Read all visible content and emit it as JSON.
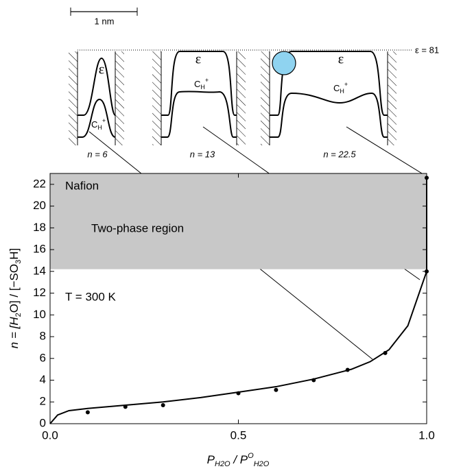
{
  "chart_data": {
    "type": "line",
    "xlim": [
      0,
      1
    ],
    "ylim": [
      0,
      23
    ],
    "xticks": [
      {
        "value": 0,
        "label": "0.0"
      },
      {
        "value": 0.5,
        "label": "0.5"
      },
      {
        "value": 1,
        "label": "1.0"
      }
    ],
    "yticks": [
      0,
      2,
      4,
      6,
      8,
      10,
      12,
      14,
      16,
      18,
      20,
      22
    ],
    "x_label": [
      "P",
      "H2O",
      " / P",
      "O",
      "H2O"
    ],
    "y_label": [
      "n = [H",
      "2",
      "O] / [−SO",
      "3",
      "H]"
    ],
    "region": [
      14.2,
      23
    ],
    "region_color": "#c8c8c8",
    "annotations": [
      "Nafion",
      "Two-phase region",
      "T = 300 K"
    ],
    "series": [
      {
        "type": "line",
        "color": "#000000",
        "x": [
          0,
          0.02,
          0.05,
          0.1,
          0.2,
          0.3,
          0.4,
          0.5,
          0.6,
          0.7,
          0.8,
          0.85,
          0.9,
          0.95,
          0.98,
          1.0,
          1.0
        ],
        "values": [
          0,
          0.8,
          1.2,
          1.4,
          1.7,
          2.0,
          2.4,
          2.9,
          3.4,
          4.1,
          5.0,
          5.7,
          6.8,
          9.0,
          12,
          14,
          22.6
        ]
      },
      {
        "type": "scatter",
        "color": "#000000",
        "x": [
          0.1,
          0.2,
          0.3,
          0.5,
          0.6,
          0.7,
          0.79,
          0.89,
          1.0,
          1.0
        ],
        "values": [
          1.05,
          1.55,
          1.7,
          2.8,
          3.1,
          4.0,
          4.95,
          6.5,
          14,
          22.6
        ]
      }
    ]
  },
  "diagram": {
    "scale_bar": "1 nm",
    "eps_ref": "ε = 81",
    "wells": [
      {
        "eps": "ε",
        "c": [
          "C",
          "H",
          "+"
        ],
        "n": "n = 6"
      },
      {
        "eps": "ε",
        "c": [
          "C",
          "H",
          "+"
        ],
        "n": "n = 13"
      },
      {
        "eps": "ε",
        "c": [
          "C",
          "H",
          "+"
        ],
        "n": "n = 22.5"
      }
    ]
  }
}
